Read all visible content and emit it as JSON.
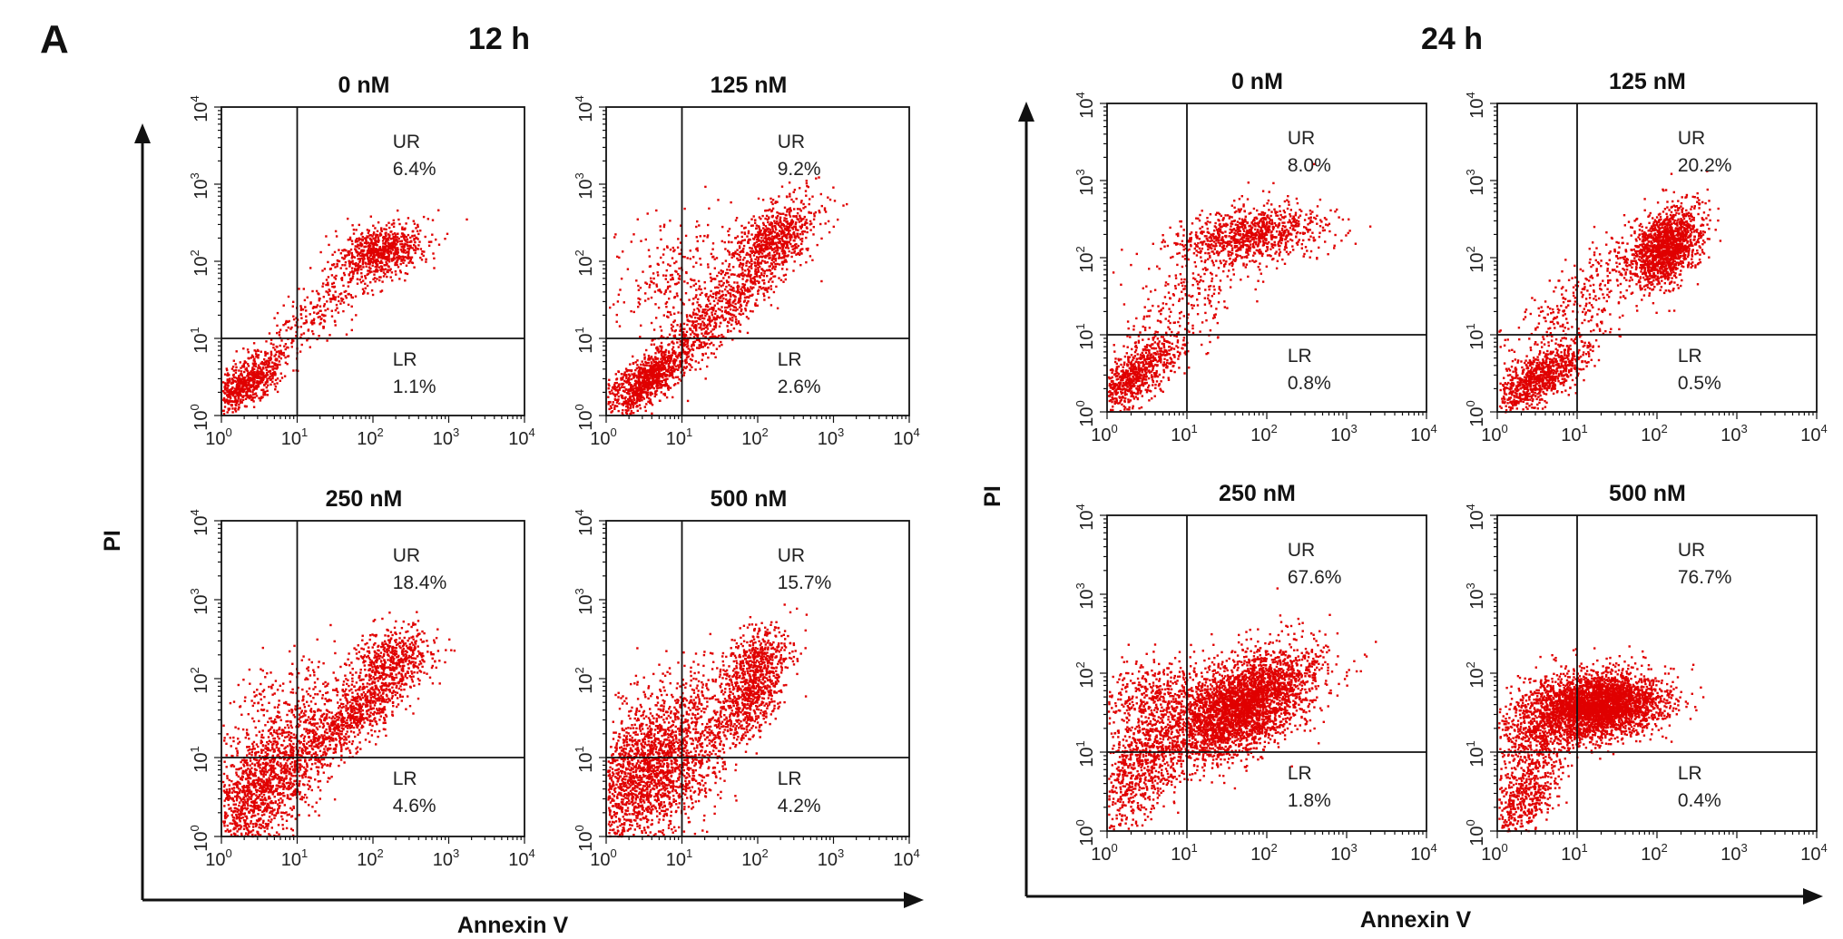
{
  "panel_label": "A",
  "colors": {
    "dots": "#e00000",
    "lines": "#111111",
    "text": "#111111"
  },
  "chart_data": {
    "type": "scatter",
    "x_scale": "log",
    "y_scale": "log",
    "xlim": [
      1,
      10000
    ],
    "ylim": [
      1,
      10000
    ],
    "x_ticks": [
      1,
      10,
      100,
      1000,
      10000
    ],
    "y_ticks": [
      1,
      10,
      100,
      1000,
      10000
    ],
    "grid": false,
    "tick_base": "10",
    "tick_exponents": [
      "0",
      "1",
      "2",
      "3",
      "4"
    ],
    "quadrant_gate": {
      "x": 10,
      "y": 10
    },
    "groups": [
      {
        "title": "12 h",
        "xlabel": "Annexin V",
        "ylabel": "PI",
        "plots": [
          {
            "title": "0 nM",
            "ur": "6.4%",
            "lr": "1.1%",
            "ur_label": "UR",
            "lr_label": "LR",
            "clusters": [
              {
                "n": 700,
                "cx": 0.35,
                "cy": 0.45,
                "sx": 0.25,
                "sy": 0.2,
                "rho": 0.7
              },
              {
                "n": 700,
                "cx": 2.1,
                "cy": 2.15,
                "sx": 0.3,
                "sy": 0.18,
                "rho": 0.4
              },
              {
                "n": 300,
                "cx": 1.3,
                "cy": 1.4,
                "sx": 0.45,
                "sy": 0.4,
                "rho": 0.85
              }
            ]
          },
          {
            "title": "125 nM",
            "ur": "9.2%",
            "lr": "2.6%",
            "ur_label": "UR",
            "lr_label": "LR",
            "clusters": [
              {
                "n": 900,
                "cx": 0.5,
                "cy": 0.45,
                "sx": 0.3,
                "sy": 0.22,
                "rho": 0.7
              },
              {
                "n": 700,
                "cx": 2.2,
                "cy": 2.3,
                "sx": 0.3,
                "sy": 0.25,
                "rho": 0.5
              },
              {
                "n": 700,
                "cx": 1.4,
                "cy": 1.3,
                "sx": 0.5,
                "sy": 0.45,
                "rho": 0.88
              },
              {
                "n": 300,
                "cx": 1.0,
                "cy": 1.8,
                "sx": 0.5,
                "sy": 0.4,
                "rho": 0.4
              }
            ]
          },
          {
            "title": "250 nM",
            "ur": "18.4%",
            "lr": "4.6%",
            "ur_label": "UR",
            "lr_label": "LR",
            "clusters": [
              {
                "n": 1400,
                "cx": 0.5,
                "cy": 0.6,
                "sx": 0.4,
                "sy": 0.45,
                "rho": 0.6
              },
              {
                "n": 900,
                "cx": 1.8,
                "cy": 1.6,
                "sx": 0.45,
                "sy": 0.4,
                "rho": 0.85
              },
              {
                "n": 400,
                "cx": 2.2,
                "cy": 2.3,
                "sx": 0.25,
                "sy": 0.2,
                "rho": 0.3
              },
              {
                "n": 300,
                "cx": 0.9,
                "cy": 1.6,
                "sx": 0.5,
                "sy": 0.35,
                "rho": 0.3
              }
            ]
          },
          {
            "title": "500 nM",
            "ur": "15.7%",
            "lr": "4.2%",
            "ur_label": "UR",
            "lr_label": "LR",
            "clusters": [
              {
                "n": 2000,
                "cx": 0.5,
                "cy": 0.8,
                "sx": 0.5,
                "sy": 0.45,
                "rho": 0.4
              },
              {
                "n": 700,
                "cx": 1.9,
                "cy": 1.8,
                "sx": 0.25,
                "sy": 0.35,
                "rho": 0.6
              },
              {
                "n": 300,
                "cx": 2.0,
                "cy": 2.3,
                "sx": 0.25,
                "sy": 0.2,
                "rho": 0.2
              },
              {
                "n": 300,
                "cx": 1.0,
                "cy": 1.6,
                "sx": 0.4,
                "sy": 0.35,
                "rho": 0.3
              }
            ]
          }
        ]
      },
      {
        "title": "24 h",
        "xlabel": "Annexin V",
        "ylabel": "PI",
        "plots": [
          {
            "title": "0 nM",
            "ur": "8.0%",
            "lr": "0.8%",
            "ur_label": "UR",
            "lr_label": "LR",
            "clusters": [
              {
                "n": 800,
                "cx": 0.35,
                "cy": 0.5,
                "sx": 0.28,
                "sy": 0.25,
                "rho": 0.7
              },
              {
                "n": 900,
                "cx": 1.8,
                "cy": 2.3,
                "sx": 0.45,
                "sy": 0.18,
                "rho": 0.3
              },
              {
                "n": 300,
                "cx": 1.0,
                "cy": 1.5,
                "sx": 0.5,
                "sy": 0.5,
                "rho": 0.7
              }
            ]
          },
          {
            "title": "125 nM",
            "ur": "20.2%",
            "lr": "0.5%",
            "ur_label": "UR",
            "lr_label": "LR",
            "clusters": [
              {
                "n": 900,
                "cx": 0.5,
                "cy": 0.45,
                "sx": 0.3,
                "sy": 0.22,
                "rho": 0.7
              },
              {
                "n": 1400,
                "cx": 2.1,
                "cy": 2.15,
                "sx": 0.22,
                "sy": 0.25,
                "rho": 0.4
              },
              {
                "n": 400,
                "cx": 1.2,
                "cy": 1.6,
                "sx": 0.55,
                "sy": 0.5,
                "rho": 0.8
              }
            ]
          },
          {
            "title": "250 nM",
            "ur": "67.6%",
            "lr": "1.8%",
            "ur_label": "UR",
            "lr_label": "LR",
            "clusters": [
              {
                "n": 3200,
                "cx": 1.7,
                "cy": 1.6,
                "sx": 0.45,
                "sy": 0.35,
                "rho": 0.55
              },
              {
                "n": 900,
                "cx": 0.4,
                "cy": 0.8,
                "sx": 0.35,
                "sy": 0.45,
                "rho": 0.6
              },
              {
                "n": 500,
                "cx": 0.6,
                "cy": 1.7,
                "sx": 0.45,
                "sy": 0.25,
                "rho": 0.2
              }
            ]
          },
          {
            "title": "500 nM",
            "ur": "76.7%",
            "lr": "0.4%",
            "ur_label": "UR",
            "lr_label": "LR",
            "clusters": [
              {
                "n": 3200,
                "cx": 1.25,
                "cy": 1.6,
                "sx": 0.4,
                "sy": 0.2,
                "rho": 0.2
              },
              {
                "n": 700,
                "cx": 0.5,
                "cy": 1.3,
                "sx": 0.35,
                "sy": 0.35,
                "rho": 0.5
              },
              {
                "n": 500,
                "cx": 0.3,
                "cy": 0.4,
                "sx": 0.25,
                "sy": 0.3,
                "rho": 0.6
              }
            ]
          }
        ]
      }
    ]
  }
}
